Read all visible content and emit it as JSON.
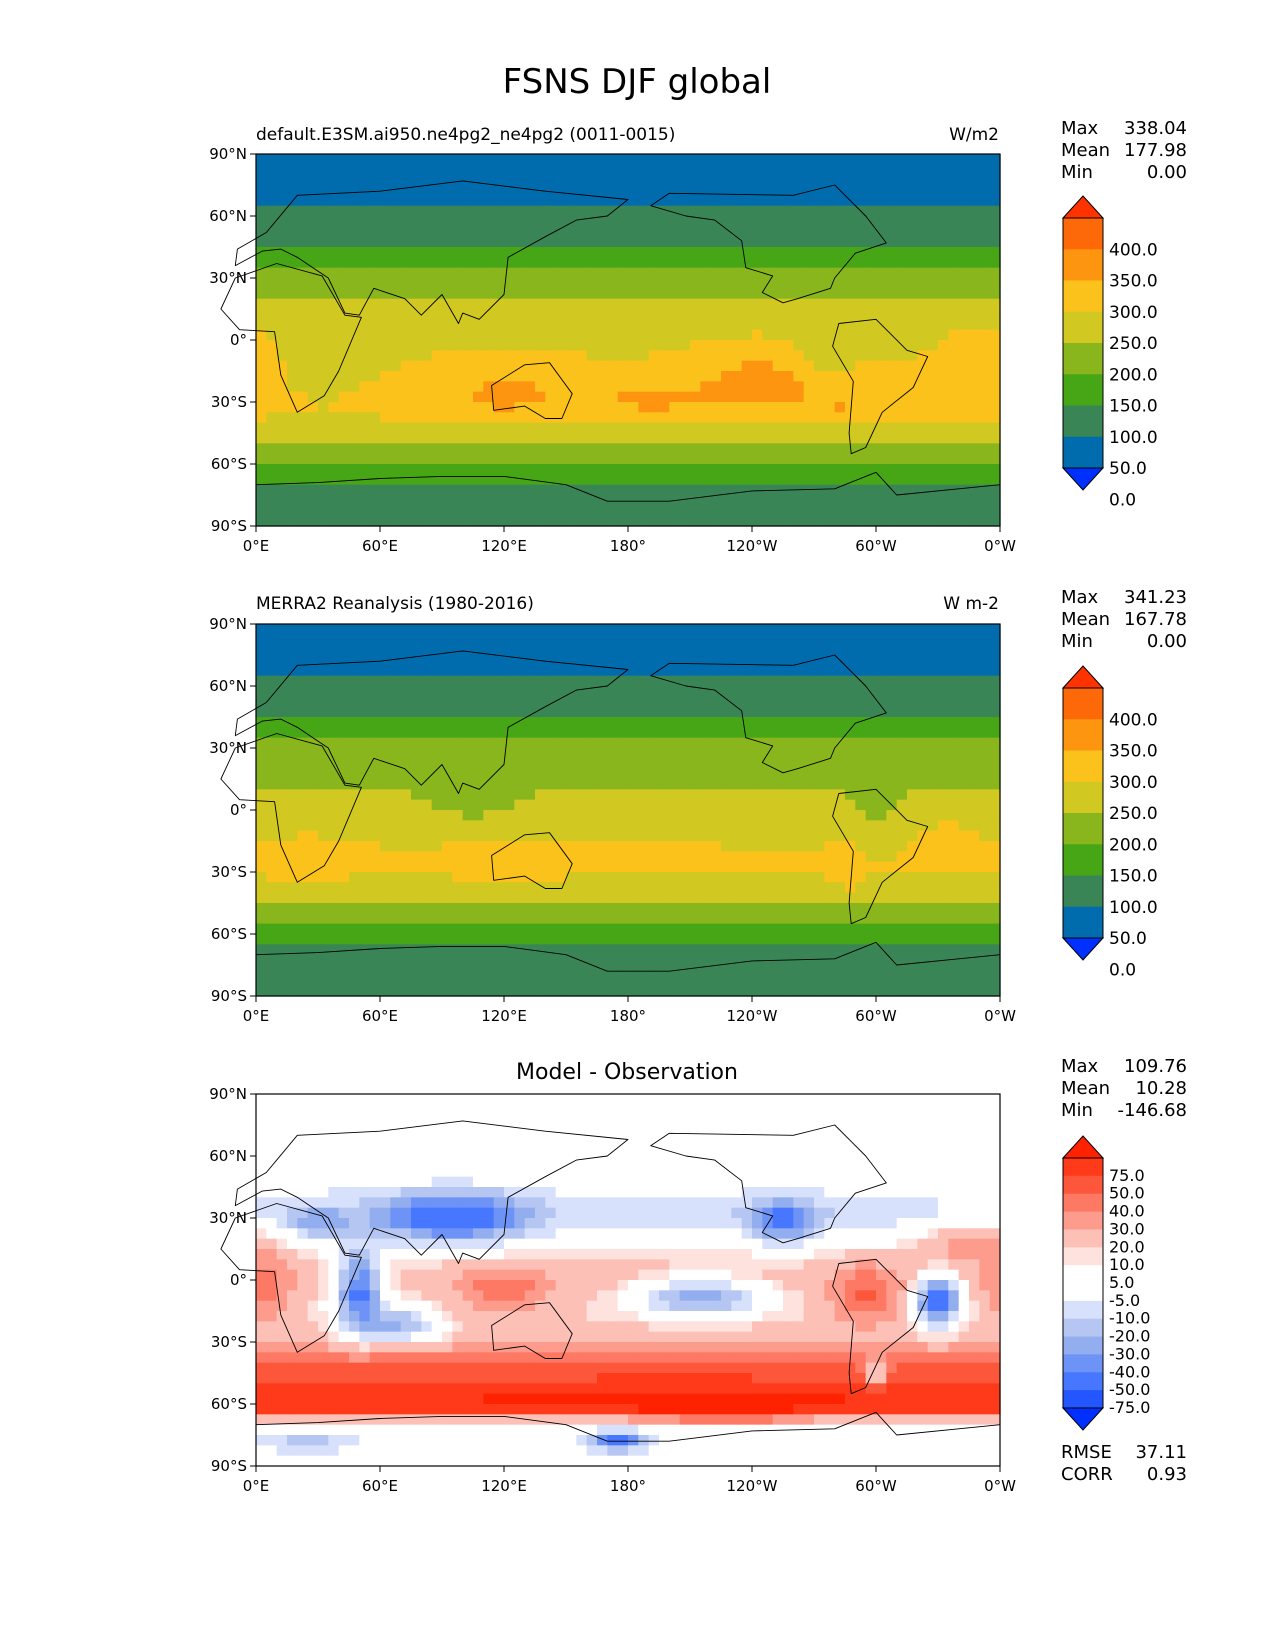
{
  "figure_title": "FSNS DJF global",
  "colors": {
    "cmap_main": [
      "#0030ff",
      "#006cad",
      "#3a8556",
      "#46a616",
      "#88b61c",
      "#d1c822",
      "#fbc21c",
      "#fd9510",
      "#fd6909",
      "#ff3300"
    ],
    "cmap_diff": [
      "#0030ff",
      "#2456ff",
      "#4877ff",
      "#6d93f6",
      "#93aeef",
      "#b4c6f1",
      "#d8e1fb",
      "#ffffff",
      "#ffffff",
      "#fde2de",
      "#fdc0b7",
      "#fd9c8d",
      "#fd7964",
      "#fd573b",
      "#ff3a1a",
      "#ff2200"
    ]
  },
  "chart_data": [
    {
      "type": "heatmap",
      "panel": "test",
      "title": "default.E3SM.ai950.ne4pg2_ne4pg2 (0011-0015)",
      "units": "W/m2",
      "stats": {
        "max_label": "Max",
        "max": "338.04",
        "mean_label": "Mean",
        "mean": "177.98",
        "min_label": "Min",
        "min": "0.00"
      },
      "x_ticks": [
        "0°E",
        "60°E",
        "120°E",
        "180°",
        "120°W",
        "60°W",
        "0°W"
      ],
      "y_ticks": [
        "90°N",
        "60°N",
        "30°N",
        "0°",
        "30°S",
        "60°S",
        "90°S"
      ],
      "xlim": [
        0,
        360
      ],
      "ylim": [
        -90,
        90
      ],
      "colorbar_levels": [
        0,
        50,
        100,
        150,
        200,
        250,
        300,
        350,
        400
      ],
      "colorbar_labels": [
        "400.0",
        "350.0",
        "300.0",
        "250.0",
        "200.0",
        "150.0",
        "100.0",
        "50.0",
        "0.0"
      ],
      "zonal_profile": {
        "lat": [
          -90,
          -80,
          -70,
          -60,
          -50,
          -40,
          -30,
          -20,
          -10,
          0,
          10,
          20,
          30,
          40,
          50,
          60,
          70,
          80,
          86,
          90
        ],
        "value": [
          80,
          80,
          85,
          150,
          195,
          245,
          275,
          265,
          250,
          240,
          230,
          210,
          165,
          120,
          80,
          55,
          45,
          35,
          20,
          0
        ]
      },
      "anomalies": [
        {
          "lon": 120,
          "lat": -25,
          "amp": 40,
          "slon": 20,
          "slat": 12
        },
        {
          "lon": 245,
          "lat": -18,
          "amp": 55,
          "slon": 22,
          "slat": 12
        },
        {
          "lon": 190,
          "lat": -30,
          "amp": 35,
          "slon": 22,
          "slat": 8
        },
        {
          "lon": 285,
          "lat": -33,
          "amp": 30,
          "slon": 12,
          "slat": 8
        },
        {
          "lon": 355,
          "lat": -10,
          "amp": 45,
          "slon": 15,
          "slat": 12
        },
        {
          "lon": 30,
          "lat": -15,
          "amp": -40,
          "slon": 18,
          "slat": 14
        },
        {
          "lon": 275,
          "lat": -5,
          "amp": -45,
          "slon": 10,
          "slat": 12
        }
      ]
    },
    {
      "type": "heatmap",
      "panel": "reference",
      "title": "MERRA2 Reanalysis (1980-2016)",
      "units": "W m-2",
      "stats": {
        "max_label": "Max",
        "max": "341.23",
        "mean_label": "Mean",
        "mean": "167.78",
        "min_label": "Min",
        "min": "0.00"
      },
      "x_ticks": [
        "0°E",
        "60°E",
        "120°E",
        "180°",
        "120°W",
        "60°W",
        "0°W"
      ],
      "y_ticks": [
        "90°N",
        "60°N",
        "30°N",
        "0°",
        "30°S",
        "60°S",
        "90°S"
      ],
      "xlim": [
        0,
        360
      ],
      "ylim": [
        -90,
        90
      ],
      "colorbar_levels": [
        0,
        50,
        100,
        150,
        200,
        250,
        300,
        350,
        400
      ],
      "colorbar_labels": [
        "400.0",
        "350.0",
        "300.0",
        "250.0",
        "200.0",
        "150.0",
        "100.0",
        "50.0",
        "0.0"
      ],
      "zonal_profile": {
        "lat": [
          -90,
          -80,
          -70,
          -60,
          -50,
          -40,
          -30,
          -20,
          -10,
          0,
          10,
          20,
          30,
          40,
          50,
          60,
          70,
          80,
          86,
          90
        ],
        "value": [
          80,
          80,
          85,
          140,
          160,
          215,
          255,
          255,
          235,
          215,
          200,
          185,
          160,
          125,
          85,
          55,
          45,
          35,
          20,
          0
        ]
      },
      "anomalies": [
        {
          "lon": 25,
          "lat": -25,
          "amp": 40,
          "slon": 10,
          "slat": 8
        },
        {
          "lon": 122,
          "lat": -27,
          "amp": 35,
          "slon": 14,
          "slat": 8
        },
        {
          "lon": 287,
          "lat": -30,
          "amp": 45,
          "slon": 5,
          "slat": 12
        },
        {
          "lon": 335,
          "lat": -15,
          "amp": 40,
          "slon": 10,
          "slat": 7
        },
        {
          "lon": 300,
          "lat": -8,
          "amp": -30,
          "slon": 10,
          "slat": 10
        },
        {
          "lon": 105,
          "lat": 5,
          "amp": -30,
          "slon": 15,
          "slat": 10
        }
      ]
    },
    {
      "type": "heatmap",
      "panel": "difference",
      "title": "Model - Observation",
      "units": "",
      "stats": {
        "max_label": "Max",
        "max": "109.76",
        "mean_label": "Mean",
        "mean": "10.28",
        "min_label": "Min",
        "min": "-146.68"
      },
      "metrics": {
        "rmse_label": "RMSE",
        "rmse": "37.11",
        "corr_label": "CORR",
        "corr": "0.93"
      },
      "x_ticks": [
        "0°E",
        "60°E",
        "120°E",
        "180°",
        "120°W",
        "60°W",
        "0°W"
      ],
      "y_ticks": [
        "90°N",
        "60°N",
        "30°N",
        "0°",
        "30°S",
        "60°S",
        "90°S"
      ],
      "xlim": [
        0,
        360
      ],
      "ylim": [
        -90,
        90
      ],
      "colorbar_levels": [
        -100,
        -75,
        -50,
        -40,
        -30,
        -20,
        -10,
        -5,
        5,
        10,
        20,
        30,
        40,
        50,
        75,
        100
      ],
      "colorbar_labels": [
        "75.0",
        "50.0",
        "40.0",
        "30.0",
        "20.0",
        "10.0",
        "5.0",
        "-5.0",
        "-10.0",
        "-20.0",
        "-30.0",
        "-40.0",
        "-50.0",
        "-75.0"
      ],
      "zonal_profile": {
        "lat": [
          -90,
          -80,
          -70,
          -60,
          -50,
          -40,
          -30,
          -20,
          -10,
          0,
          10,
          20,
          30,
          40,
          50,
          60,
          70,
          80,
          86,
          90
        ],
        "value": [
          0,
          -10,
          -5,
          70,
          50,
          40,
          15,
          10,
          10,
          15,
          10,
          0,
          -15,
          -10,
          0,
          0,
          0,
          0,
          0,
          0
        ]
      },
      "anomalies": [
        {
          "lon": 95,
          "lat": 30,
          "amp": -55,
          "slon": 25,
          "slat": 9
        },
        {
          "lon": 50,
          "lat": -5,
          "amp": -65,
          "slon": 8,
          "slat": 14
        },
        {
          "lon": 70,
          "lat": -22,
          "amp": -40,
          "slon": 12,
          "slat": 6
        },
        {
          "lon": 215,
          "lat": -8,
          "amp": -50,
          "slon": 20,
          "slat": 6
        },
        {
          "lon": 255,
          "lat": 28,
          "amp": -45,
          "slon": 12,
          "slat": 8
        },
        {
          "lon": 330,
          "lat": -10,
          "amp": -80,
          "slon": 7,
          "slat": 8
        },
        {
          "lon": 300,
          "lat": -45,
          "amp": -40,
          "slon": 4,
          "slat": 5
        },
        {
          "lon": 175,
          "lat": -78,
          "amp": -50,
          "slon": 8,
          "slat": 3
        },
        {
          "lon": 25,
          "lat": -78,
          "amp": -20,
          "slon": 10,
          "slat": 3
        },
        {
          "lon": 30,
          "lat": 28,
          "amp": -25,
          "slon": 10,
          "slat": 6
        },
        {
          "lon": 190,
          "lat": -58,
          "amp": 25,
          "slon": 60,
          "slat": 5
        },
        {
          "lon": 295,
          "lat": -8,
          "amp": 30,
          "slon": 12,
          "slat": 10
        },
        {
          "lon": 120,
          "lat": -5,
          "amp": 25,
          "slon": 15,
          "slat": 8
        },
        {
          "lon": 5,
          "lat": -5,
          "amp": 25,
          "slon": 8,
          "slat": 12
        },
        {
          "lon": 345,
          "lat": 20,
          "amp": 25,
          "slon": 15,
          "slat": 8
        },
        {
          "lon": 230,
          "lat": -62,
          "amp": 35,
          "slon": 25,
          "slat": 5
        }
      ]
    }
  ]
}
